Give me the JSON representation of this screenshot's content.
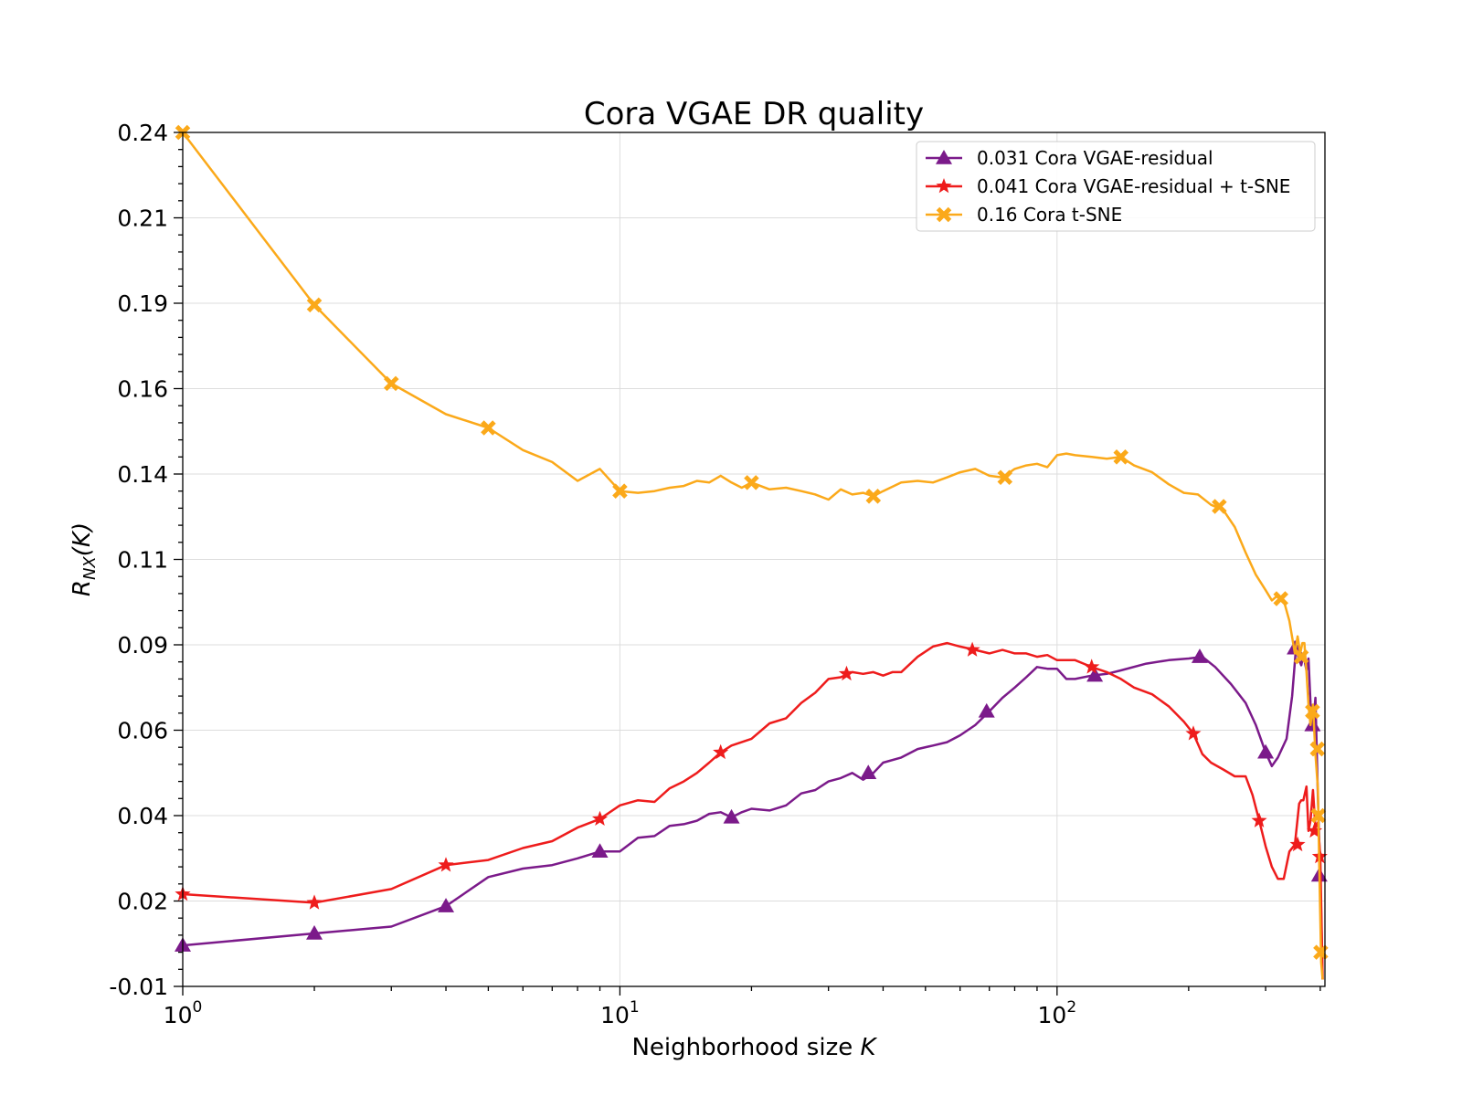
{
  "chart_data": {
    "type": "line",
    "title": "Cora VGAE DR quality",
    "xlabel": "Neighborhood size K",
    "ylabel": "R_NX(K)",
    "x_scale": "log",
    "xlim": [
      1,
      410
    ],
    "ylim": [
      -0.01,
      0.24
    ],
    "x_ticks": [
      {
        "value": 1,
        "label_base": "10",
        "label_exp": "0"
      },
      {
        "value": 10,
        "label_base": "10",
        "label_exp": "1"
      },
      {
        "value": 100,
        "label_base": "10",
        "label_exp": "2"
      }
    ],
    "y_ticks": [
      {
        "value": -0.01,
        "label": "-0.01"
      },
      {
        "value": 0.015,
        "label": "0.02"
      },
      {
        "value": 0.04,
        "label": "0.04"
      },
      {
        "value": 0.065,
        "label": "0.06"
      },
      {
        "value": 0.09,
        "label": "0.09"
      },
      {
        "value": 0.115,
        "label": "0.11"
      },
      {
        "value": 0.14,
        "label": "0.14"
      },
      {
        "value": 0.165,
        "label": "0.16"
      },
      {
        "value": 0.19,
        "label": "0.19"
      },
      {
        "value": 0.215,
        "label": "0.21"
      },
      {
        "value": 0.24,
        "label": "0.24"
      }
    ],
    "grid": true,
    "legend_position": "top-right",
    "series": [
      {
        "name": "0.031 Cora VGAE-residual",
        "color": "#7b1a8a",
        "marker": "triangle",
        "points": [
          [
            1,
            0.002
          ],
          [
            2,
            0.0055
          ],
          [
            3,
            0.0075
          ],
          [
            4,
            0.0135
          ],
          [
            5,
            0.022
          ],
          [
            6,
            0.0245
          ],
          [
            7,
            0.0255
          ],
          [
            8,
            0.0275
          ],
          [
            9,
            0.0295
          ],
          [
            10,
            0.0295
          ],
          [
            11,
            0.0335
          ],
          [
            12,
            0.034
          ],
          [
            13,
            0.037
          ],
          [
            14,
            0.0375
          ],
          [
            15,
            0.0385
          ],
          [
            16,
            0.0405
          ],
          [
            17,
            0.041
          ],
          [
            18,
            0.0395
          ],
          [
            19,
            0.041
          ],
          [
            20,
            0.042
          ],
          [
            22,
            0.0415
          ],
          [
            24,
            0.043
          ],
          [
            26,
            0.0465
          ],
          [
            28,
            0.0475
          ],
          [
            30,
            0.05
          ],
          [
            32,
            0.051
          ],
          [
            34,
            0.0525
          ],
          [
            36,
            0.0505
          ],
          [
            38,
            0.0525
          ],
          [
            40,
            0.0555
          ],
          [
            44,
            0.057
          ],
          [
            48,
            0.0595
          ],
          [
            52,
            0.0605
          ],
          [
            56,
            0.0615
          ],
          [
            60,
            0.0635
          ],
          [
            65,
            0.0665
          ],
          [
            70,
            0.0705
          ],
          [
            75,
            0.0745
          ],
          [
            80,
            0.0775
          ],
          [
            85,
            0.0805
          ],
          [
            90,
            0.0835
          ],
          [
            95,
            0.083
          ],
          [
            100,
            0.083
          ],
          [
            105,
            0.08
          ],
          [
            110,
            0.08
          ],
          [
            120,
            0.081
          ],
          [
            130,
            0.0815
          ],
          [
            140,
            0.0825
          ],
          [
            160,
            0.0845
          ],
          [
            180,
            0.0855
          ],
          [
            200,
            0.086
          ],
          [
            215,
            0.0865
          ],
          [
            230,
            0.0835
          ],
          [
            250,
            0.0785
          ],
          [
            270,
            0.073
          ],
          [
            285,
            0.0665
          ],
          [
            300,
            0.0585
          ],
          [
            310,
            0.0545
          ],
          [
            320,
            0.057
          ],
          [
            335,
            0.0625
          ],
          [
            345,
            0.075
          ],
          [
            352,
            0.089
          ],
          [
            358,
            0.0855
          ],
          [
            362,
            0.084
          ],
          [
            366,
            0.087
          ],
          [
            372,
            0.0825
          ],
          [
            376,
            0.086
          ],
          [
            380,
            0.073
          ],
          [
            385,
            0.0665
          ],
          [
            390,
            0.0745
          ],
          [
            395,
            0.0455
          ],
          [
            400,
            0.0225
          ],
          [
            405,
            -0.008
          ]
        ],
        "marker_points": [
          [
            1,
            0.002
          ],
          [
            2,
            0.0055
          ],
          [
            4,
            0.0135
          ],
          [
            9,
            0.0295
          ],
          [
            18,
            0.0395
          ],
          [
            37,
            0.0525
          ],
          [
            69,
            0.0705
          ],
          [
            122,
            0.081
          ],
          [
            212,
            0.0865
          ],
          [
            300,
            0.0585
          ],
          [
            350,
            0.089
          ],
          [
            384,
            0.0665
          ],
          [
            398,
            0.0225
          ]
        ]
      },
      {
        "name": "0.041 Cora VGAE-residual + t-SNE",
        "color": "#ee1c1c",
        "marker": "star",
        "points": [
          [
            1,
            0.017
          ],
          [
            2,
            0.0145
          ],
          [
            3,
            0.0185
          ],
          [
            4,
            0.0255
          ],
          [
            5,
            0.027
          ],
          [
            6,
            0.0305
          ],
          [
            7,
            0.0325
          ],
          [
            8,
            0.0365
          ],
          [
            9,
            0.039
          ],
          [
            10,
            0.043
          ],
          [
            11,
            0.0445
          ],
          [
            12,
            0.044
          ],
          [
            13,
            0.048
          ],
          [
            14,
            0.05
          ],
          [
            15,
            0.0525
          ],
          [
            16,
            0.0555
          ],
          [
            17,
            0.0585
          ],
          [
            18,
            0.0605
          ],
          [
            20,
            0.0625
          ],
          [
            22,
            0.067
          ],
          [
            24,
            0.0685
          ],
          [
            26,
            0.073
          ],
          [
            28,
            0.076
          ],
          [
            30,
            0.08
          ],
          [
            32,
            0.0805
          ],
          [
            34,
            0.082
          ],
          [
            36,
            0.0815
          ],
          [
            38,
            0.082
          ],
          [
            40,
            0.081
          ],
          [
            42,
            0.082
          ],
          [
            44,
            0.082
          ],
          [
            48,
            0.0865
          ],
          [
            52,
            0.0895
          ],
          [
            56,
            0.0905
          ],
          [
            60,
            0.0895
          ],
          [
            65,
            0.0885
          ],
          [
            70,
            0.0875
          ],
          [
            75,
            0.0885
          ],
          [
            80,
            0.0875
          ],
          [
            85,
            0.0875
          ],
          [
            90,
            0.0865
          ],
          [
            95,
            0.087
          ],
          [
            100,
            0.0855
          ],
          [
            105,
            0.0855
          ],
          [
            110,
            0.0855
          ],
          [
            115,
            0.0845
          ],
          [
            120,
            0.0835
          ],
          [
            130,
            0.082
          ],
          [
            140,
            0.08
          ],
          [
            150,
            0.0775
          ],
          [
            165,
            0.0755
          ],
          [
            180,
            0.072
          ],
          [
            195,
            0.0675
          ],
          [
            205,
            0.064
          ],
          [
            215,
            0.058
          ],
          [
            225,
            0.0555
          ],
          [
            240,
            0.0535
          ],
          [
            255,
            0.0515
          ],
          [
            270,
            0.0515
          ],
          [
            280,
            0.046
          ],
          [
            290,
            0.0385
          ],
          [
            300,
            0.031
          ],
          [
            310,
            0.025
          ],
          [
            320,
            0.0215
          ],
          [
            330,
            0.0215
          ],
          [
            340,
            0.0295
          ],
          [
            350,
            0.0315
          ],
          [
            358,
            0.0435
          ],
          [
            362,
            0.0445
          ],
          [
            366,
            0.0445
          ],
          [
            372,
            0.0485
          ],
          [
            376,
            0.0355
          ],
          [
            380,
            0.0385
          ],
          [
            385,
            0.0475
          ],
          [
            390,
            0.0365
          ],
          [
            395,
            0.038
          ],
          [
            400,
            0.028
          ],
          [
            405,
            -0.008
          ]
        ],
        "marker_points": [
          [
            1,
            0.017
          ],
          [
            2,
            0.0145
          ],
          [
            4,
            0.0255
          ],
          [
            9,
            0.039
          ],
          [
            17,
            0.0585
          ],
          [
            33,
            0.0815
          ],
          [
            64,
            0.0885
          ],
          [
            120,
            0.0835
          ],
          [
            205,
            0.064
          ],
          [
            290,
            0.0385
          ],
          [
            355,
            0.0315
          ],
          [
            388,
            0.0355
          ],
          [
            399,
            0.028
          ]
        ]
      },
      {
        "name": "0.16 Cora t-SNE",
        "color": "#fba91a",
        "marker": "x",
        "points": [
          [
            1,
            0.24
          ],
          [
            2,
            0.1895
          ],
          [
            3,
            0.1665
          ],
          [
            4,
            0.1575
          ],
          [
            5,
            0.1535
          ],
          [
            6,
            0.147
          ],
          [
            7,
            0.1435
          ],
          [
            8,
            0.138
          ],
          [
            9,
            0.1415
          ],
          [
            10,
            0.135
          ],
          [
            11,
            0.1345
          ],
          [
            12,
            0.135
          ],
          [
            13,
            0.136
          ],
          [
            14,
            0.1365
          ],
          [
            15,
            0.138
          ],
          [
            16,
            0.1375
          ],
          [
            17,
            0.1395
          ],
          [
            18,
            0.1375
          ],
          [
            19,
            0.136
          ],
          [
            20,
            0.1375
          ],
          [
            22,
            0.1355
          ],
          [
            24,
            0.136
          ],
          [
            26,
            0.135
          ],
          [
            28,
            0.134
          ],
          [
            30,
            0.1325
          ],
          [
            32,
            0.1355
          ],
          [
            34,
            0.134
          ],
          [
            36,
            0.1345
          ],
          [
            38,
            0.1335
          ],
          [
            40,
            0.135
          ],
          [
            44,
            0.1375
          ],
          [
            48,
            0.138
          ],
          [
            52,
            0.1375
          ],
          [
            56,
            0.139
          ],
          [
            60,
            0.1405
          ],
          [
            65,
            0.1415
          ],
          [
            70,
            0.1395
          ],
          [
            75,
            0.139
          ],
          [
            80,
            0.1415
          ],
          [
            85,
            0.1425
          ],
          [
            90,
            0.143
          ],
          [
            95,
            0.142
          ],
          [
            100,
            0.1455
          ],
          [
            105,
            0.146
          ],
          [
            110,
            0.1455
          ],
          [
            120,
            0.145
          ],
          [
            130,
            0.1445
          ],
          [
            140,
            0.145
          ],
          [
            150,
            0.1425
          ],
          [
            165,
            0.1405
          ],
          [
            180,
            0.137
          ],
          [
            195,
            0.1345
          ],
          [
            210,
            0.134
          ],
          [
            225,
            0.131
          ],
          [
            240,
            0.1295
          ],
          [
            255,
            0.1245
          ],
          [
            270,
            0.117
          ],
          [
            285,
            0.1105
          ],
          [
            300,
            0.106
          ],
          [
            310,
            0.103
          ],
          [
            320,
            0.1045
          ],
          [
            330,
            0.103
          ],
          [
            340,
            0.097
          ],
          [
            350,
            0.0875
          ],
          [
            355,
            0.0925
          ],
          [
            360,
            0.0875
          ],
          [
            364,
            0.0905
          ],
          [
            368,
            0.0905
          ],
          [
            372,
            0.082
          ],
          [
            376,
            0.0725
          ],
          [
            380,
            0.0665
          ],
          [
            385,
            0.0725
          ],
          [
            390,
            0.058
          ],
          [
            395,
            0.048
          ],
          [
            398,
            0.025
          ],
          [
            402,
            -0.003
          ],
          [
            405,
            -0.008
          ]
        ],
        "marker_points": [
          [
            1,
            0.24
          ],
          [
            2,
            0.1895
          ],
          [
            3,
            0.1665
          ],
          [
            5,
            0.1535
          ],
          [
            10,
            0.135
          ],
          [
            20,
            0.1375
          ],
          [
            38,
            0.1335
          ],
          [
            76,
            0.139
          ],
          [
            140,
            0.145
          ],
          [
            235,
            0.1305
          ],
          [
            325,
            0.1035
          ],
          [
            362,
            0.0865
          ],
          [
            384,
            0.0705
          ],
          [
            394,
            0.0595
          ],
          [
            396,
            0.04
          ],
          [
            401,
            0.0
          ]
        ]
      }
    ]
  }
}
